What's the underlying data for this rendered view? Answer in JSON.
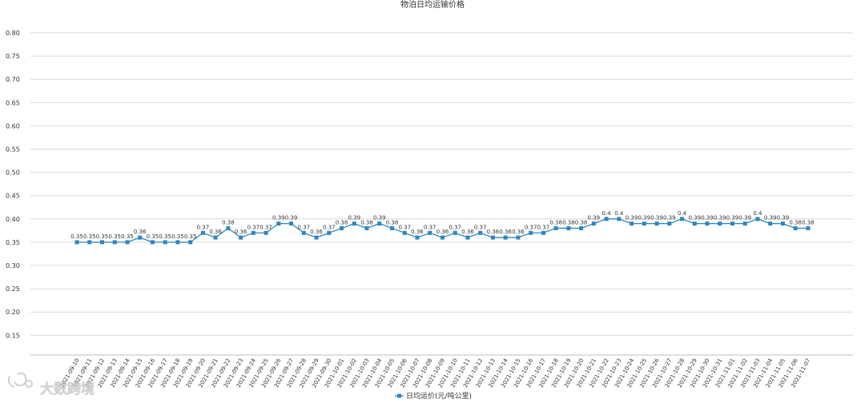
{
  "chart_data": {
    "type": "line",
    "title": "物泊日均运输价格",
    "xlabel": "",
    "ylabel": "",
    "ylim": [
      0.1,
      0.8
    ],
    "yticks": [
      "0.80",
      "0.75",
      "0.70",
      "0.65",
      "0.60",
      "0.55",
      "0.50",
      "0.45",
      "0.40",
      "0.35",
      "0.30",
      "0.25",
      "0.20",
      "0.15"
    ],
    "grid": true,
    "legend_position": "bottom",
    "categories": [
      "2021-09-10",
      "2021-09-11",
      "2021-09-12",
      "2021-09-13",
      "2021-09-14",
      "2021-09-15",
      "2021-09-16",
      "2021-09-17",
      "2021-09-18",
      "2021-09-19",
      "2021-09-20",
      "2021-09-21",
      "2021-09-22",
      "2021-09-23",
      "2021-09-24",
      "2021-09-25",
      "2021-09-26",
      "2021-09-27",
      "2021-09-28",
      "2021-09-29",
      "2021-09-30",
      "2021-10-01",
      "2021-10-02",
      "2021-10-03",
      "2021-10-04",
      "2021-10-05",
      "2021-10-06",
      "2021-10-07",
      "2021-10-08",
      "2021-10-09",
      "2021-10-10",
      "2021-10-11",
      "2021-10-12",
      "2021-10-13",
      "2021-10-14",
      "2021-10-15",
      "2021-10-16",
      "2021-10-17",
      "2021-10-18",
      "2021-10-19",
      "2021-10-20",
      "2021-10-21",
      "2021-10-22",
      "2021-10-23",
      "2021-10-24",
      "2021-10-25",
      "2021-10-26",
      "2021-10-27",
      "2021-10-28",
      "2021-10-29",
      "2021-10-30",
      "2021-10-31",
      "2021-11-01",
      "2021-11-02",
      "2021-11-03",
      "2021-11-04",
      "2021-11-05",
      "2021-11-06",
      "2021-11-07"
    ],
    "series": [
      {
        "name": "日均运价(元/吨公里)",
        "color": "#2e86c1",
        "values": [
          0.35,
          0.35,
          0.35,
          0.35,
          0.35,
          0.36,
          0.35,
          0.35,
          0.35,
          0.35,
          0.37,
          0.36,
          0.38,
          0.36,
          0.37,
          0.37,
          0.39,
          0.39,
          0.37,
          0.36,
          0.37,
          0.38,
          0.39,
          0.38,
          0.39,
          0.38,
          0.37,
          0.36,
          0.37,
          0.36,
          0.37,
          0.36,
          0.37,
          0.36,
          0.36,
          0.36,
          0.37,
          0.37,
          0.38,
          0.38,
          0.38,
          0.39,
          0.4,
          0.4,
          0.39,
          0.39,
          0.39,
          0.39,
          0.4,
          0.39,
          0.39,
          0.39,
          0.39,
          0.39,
          0.4,
          0.39,
          0.39,
          0.38,
          0.38
        ]
      }
    ]
  },
  "watermark": {
    "text": "大数跨境",
    "icon": "logo-mark-icon"
  }
}
